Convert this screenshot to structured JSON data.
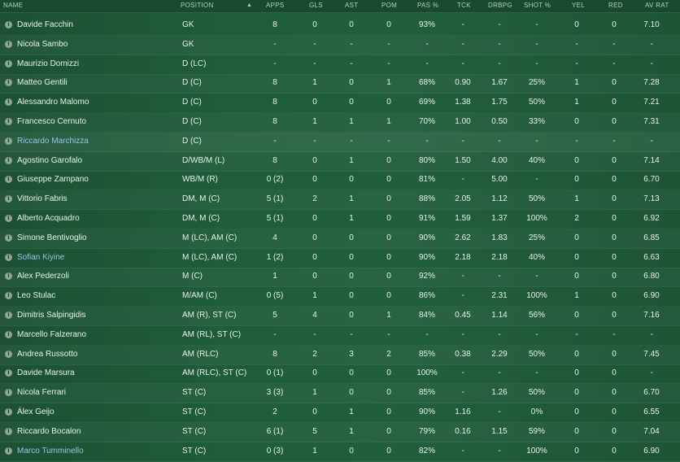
{
  "columns": {
    "name": "NAME",
    "position": "POSITION",
    "apps": "APPS",
    "gls": "GLS",
    "ast": "AST",
    "pom": "POM",
    "pas": "PAS %",
    "tck": "TCK",
    "drbpg": "DRBPG",
    "shot": "SHOT %",
    "yel": "YEL",
    "red": "RED",
    "avrat": "AV RAT"
  },
  "sort_icon": "sort-ascending-icon",
  "players": [
    {
      "name": "Davide Facchin",
      "link": false,
      "position": "GK",
      "apps": "8",
      "gls": "0",
      "ast": "0",
      "pom": "0",
      "pas": "93%",
      "tck": "-",
      "drbpg": "-",
      "shot": "-",
      "yel": "0",
      "red": "0",
      "avrat": "7.10"
    },
    {
      "name": "Nicola Sambo",
      "link": false,
      "position": "GK",
      "apps": "-",
      "gls": "-",
      "ast": "-",
      "pom": "-",
      "pas": "-",
      "tck": "-",
      "drbpg": "-",
      "shot": "-",
      "yel": "-",
      "red": "-",
      "avrat": "-"
    },
    {
      "name": "Maurizio Domizzi",
      "link": false,
      "position": "D (LC)",
      "apps": "-",
      "gls": "-",
      "ast": "-",
      "pom": "-",
      "pas": "-",
      "tck": "-",
      "drbpg": "-",
      "shot": "-",
      "yel": "-",
      "red": "-",
      "avrat": "-"
    },
    {
      "name": "Matteo Gentili",
      "link": false,
      "position": "D (C)",
      "apps": "8",
      "gls": "1",
      "ast": "0",
      "pom": "1",
      "pas": "68%",
      "tck": "0.90",
      "drbpg": "1.67",
      "shot": "25%",
      "yel": "1",
      "red": "0",
      "avrat": "7.28"
    },
    {
      "name": "Alessandro Malomo",
      "link": false,
      "position": "D (C)",
      "apps": "8",
      "gls": "0",
      "ast": "0",
      "pom": "0",
      "pas": "69%",
      "tck": "1.38",
      "drbpg": "1.75",
      "shot": "50%",
      "yel": "1",
      "red": "0",
      "avrat": "7.21"
    },
    {
      "name": "Francesco Cernuto",
      "link": false,
      "position": "D (C)",
      "apps": "8",
      "gls": "1",
      "ast": "1",
      "pom": "1",
      "pas": "70%",
      "tck": "1.00",
      "drbpg": "0.50",
      "shot": "33%",
      "yel": "0",
      "red": "0",
      "avrat": "7.31"
    },
    {
      "name": "Riccardo Marchizza",
      "link": true,
      "position": "D (C)",
      "apps": "-",
      "gls": "-",
      "ast": "-",
      "pom": "-",
      "pas": "-",
      "tck": "-",
      "drbpg": "-",
      "shot": "-",
      "yel": "-",
      "red": "-",
      "avrat": "-"
    },
    {
      "name": "Agostino Garofalo",
      "link": false,
      "position": "D/WB/M (L)",
      "apps": "8",
      "gls": "0",
      "ast": "1",
      "pom": "0",
      "pas": "80%",
      "tck": "1.50",
      "drbpg": "4.00",
      "shot": "40%",
      "yel": "0",
      "red": "0",
      "avrat": "7.14"
    },
    {
      "name": "Giuseppe Zampano",
      "link": false,
      "position": "WB/M (R)",
      "apps": "0 (2)",
      "gls": "0",
      "ast": "0",
      "pom": "0",
      "pas": "81%",
      "tck": "-",
      "drbpg": "5.00",
      "shot": "-",
      "yel": "0",
      "red": "0",
      "avrat": "6.70"
    },
    {
      "name": "Vittorio Fabris",
      "link": false,
      "position": "DM, M (C)",
      "apps": "5 (1)",
      "gls": "2",
      "ast": "1",
      "pom": "0",
      "pas": "88%",
      "tck": "2.05",
      "drbpg": "1.12",
      "shot": "50%",
      "yel": "1",
      "red": "0",
      "avrat": "7.13"
    },
    {
      "name": "Alberto Acquadro",
      "link": false,
      "position": "DM, M (C)",
      "apps": "5 (1)",
      "gls": "0",
      "ast": "1",
      "pom": "0",
      "pas": "91%",
      "tck": "1.59",
      "drbpg": "1.37",
      "shot": "100%",
      "yel": "2",
      "red": "0",
      "avrat": "6.92"
    },
    {
      "name": "Simone Bentivoglio",
      "link": false,
      "position": "M (LC), AM (C)",
      "apps": "4",
      "gls": "0",
      "ast": "0",
      "pom": "0",
      "pas": "90%",
      "tck": "2.62",
      "drbpg": "1.83",
      "shot": "25%",
      "yel": "0",
      "red": "0",
      "avrat": "6.85"
    },
    {
      "name": "Sofian Kiyine",
      "link": true,
      "position": "M (LC), AM (C)",
      "apps": "1 (2)",
      "gls": "0",
      "ast": "0",
      "pom": "0",
      "pas": "90%",
      "tck": "2.18",
      "drbpg": "2.18",
      "shot": "40%",
      "yel": "0",
      "red": "0",
      "avrat": "6.63"
    },
    {
      "name": "Alex Pederzoli",
      "link": false,
      "position": "M (C)",
      "apps": "1",
      "gls": "0",
      "ast": "0",
      "pom": "0",
      "pas": "92%",
      "tck": "-",
      "drbpg": "-",
      "shot": "-",
      "yel": "0",
      "red": "0",
      "avrat": "6.80"
    },
    {
      "name": "Leo Stulac",
      "link": false,
      "position": "M/AM (C)",
      "apps": "0 (5)",
      "gls": "1",
      "ast": "0",
      "pom": "0",
      "pas": "86%",
      "tck": "-",
      "drbpg": "2.31",
      "shot": "100%",
      "yel": "1",
      "red": "0",
      "avrat": "6.90"
    },
    {
      "name": "Dimitris Salpingidis",
      "link": false,
      "position": "AM (R), ST (C)",
      "apps": "5",
      "gls": "4",
      "ast": "0",
      "pom": "1",
      "pas": "84%",
      "tck": "0.45",
      "drbpg": "1.14",
      "shot": "56%",
      "yel": "0",
      "red": "0",
      "avrat": "7.16"
    },
    {
      "name": "Marcello Falzerano",
      "link": false,
      "position": "AM (RL), ST (C)",
      "apps": "-",
      "gls": "-",
      "ast": "-",
      "pom": "-",
      "pas": "-",
      "tck": "-",
      "drbpg": "-",
      "shot": "-",
      "yel": "-",
      "red": "-",
      "avrat": "-"
    },
    {
      "name": "Andrea Russotto",
      "link": false,
      "position": "AM (RLC)",
      "apps": "8",
      "gls": "2",
      "ast": "3",
      "pom": "2",
      "pas": "85%",
      "tck": "0.38",
      "drbpg": "2.29",
      "shot": "50%",
      "yel": "0",
      "red": "0",
      "avrat": "7.45"
    },
    {
      "name": "Davide Marsura",
      "link": false,
      "position": "AM (RLC), ST (C)",
      "apps": "0 (1)",
      "gls": "0",
      "ast": "0",
      "pom": "0",
      "pas": "100%",
      "tck": "-",
      "drbpg": "-",
      "shot": "-",
      "yel": "0",
      "red": "0",
      "avrat": "-"
    },
    {
      "name": "Nicola Ferrari",
      "link": false,
      "position": "ST (C)",
      "apps": "3 (3)",
      "gls": "1",
      "ast": "0",
      "pom": "0",
      "pas": "85%",
      "tck": "-",
      "drbpg": "1.26",
      "shot": "50%",
      "yel": "0",
      "red": "0",
      "avrat": "6.70"
    },
    {
      "name": "Álex Geijo",
      "link": false,
      "position": "ST (C)",
      "apps": "2",
      "gls": "0",
      "ast": "1",
      "pom": "0",
      "pas": "90%",
      "tck": "1.16",
      "drbpg": "-",
      "shot": "0%",
      "yel": "0",
      "red": "0",
      "avrat": "6.55"
    },
    {
      "name": "Riccardo Bocalon",
      "link": false,
      "position": "ST (C)",
      "apps": "6 (1)",
      "gls": "5",
      "ast": "1",
      "pom": "0",
      "pas": "79%",
      "tck": "0.16",
      "drbpg": "1.15",
      "shot": "59%",
      "yel": "0",
      "red": "0",
      "avrat": "7.04"
    },
    {
      "name": "Marco Tumminello",
      "link": true,
      "position": "ST (C)",
      "apps": "0 (3)",
      "gls": "1",
      "ast": "0",
      "pom": "0",
      "pas": "82%",
      "tck": "-",
      "drbpg": "-",
      "shot": "100%",
      "yel": "0",
      "red": "0",
      "avrat": "6.90"
    }
  ]
}
